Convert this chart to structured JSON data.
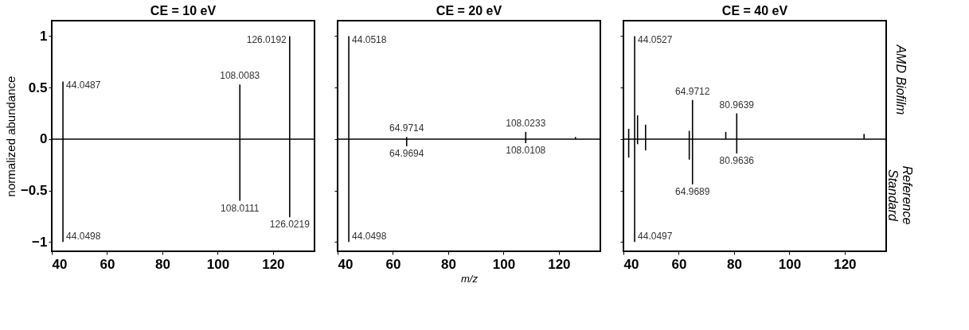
{
  "chart_data": [
    {
      "type": "bar",
      "title": "CE = 10 eV",
      "ylabel": "normalized abundance",
      "xlim": [
        40,
        135
      ],
      "xticks": [
        40,
        60,
        80,
        100,
        120
      ],
      "ylim": [
        -1.09,
        1.15
      ],
      "yticks": [
        -1,
        -0.5,
        0,
        0.5,
        1
      ],
      "grid": false,
      "ref_lines": [
        {
          "axis": "y",
          "value": 0,
          "color": "#000000"
        }
      ],
      "series": [
        {
          "color": "#000000",
          "x": [
            44.0487,
            108.0083,
            126.0192
          ],
          "values": [
            0.56,
            0.53,
            1.0
          ]
        },
        {
          "color": "#000000",
          "x": [
            44.0498,
            108.0111,
            126.0219
          ],
          "values": [
            -1.0,
            -0.6,
            -0.76
          ]
        }
      ],
      "annotations": [
        {
          "text": "44.0487",
          "x": 44.0487,
          "y": 0.56
        },
        {
          "text": "108.0083",
          "x": 108.0083,
          "y": 0.53
        },
        {
          "text": "126.0192",
          "x": 126.0192,
          "y": 1.0
        },
        {
          "text": "44.0498",
          "x": 44.0498,
          "y": -1.0
        },
        {
          "text": "108.0111",
          "x": 108.0111,
          "y": -0.6
        },
        {
          "text": "126.0219",
          "x": 126.0219,
          "y": -0.76
        }
      ]
    },
    {
      "type": "bar",
      "title": "CE = 20 eV",
      "xlabel": "m/z",
      "xlim": [
        40,
        135
      ],
      "xticks": [
        40,
        60,
        80,
        100,
        120
      ],
      "ylim": [
        -1.09,
        1.15
      ],
      "yticks": [
        -1,
        -0.5,
        0,
        0.5,
        1
      ],
      "grid": false,
      "tick_labels": "x",
      "ref_lines": [
        {
          "axis": "y",
          "value": 0,
          "color": "#000000"
        }
      ],
      "series": [
        {
          "color": "#000000",
          "x": [
            44.0518,
            64.9714,
            108.0233,
            126.0
          ],
          "values": [
            1.0,
            0.02,
            0.07,
            0.02
          ]
        },
        {
          "color": "#000000",
          "x": [
            44.0498,
            64.9694,
            108.0108
          ],
          "values": [
            -1.0,
            -0.07,
            -0.04
          ]
        }
      ],
      "annotations": [
        {
          "text": "44.0518",
          "x": 44.0518,
          "y": 1.0
        },
        {
          "text": "64.9714",
          "x": 64.9714,
          "y": 0.02
        },
        {
          "text": "108.0233",
          "x": 108.0233,
          "y": 0.07
        },
        {
          "text": "44.0498",
          "x": 44.0498,
          "y": -1.0
        },
        {
          "text": "64.9694",
          "x": 64.9694,
          "y": -0.07
        },
        {
          "text": "108.0108",
          "x": 108.0108,
          "y": -0.04
        }
      ]
    },
    {
      "type": "bar",
      "title": "CE = 40 eV",
      "xlim": [
        40,
        135
      ],
      "xticks": [
        40,
        60,
        80,
        100,
        120
      ],
      "ylim": [
        -1.09,
        1.15
      ],
      "yticks": [
        -1,
        -0.5,
        0,
        0.5,
        1
      ],
      "grid": false,
      "tick_labels": "x",
      "ref_lines": [
        {
          "axis": "y",
          "value": 0,
          "color": "#000000"
        }
      ],
      "series": [
        {
          "name": "AMD Biofilm",
          "color": "#000000",
          "x": [
            41.9,
            44.0527,
            45.1,
            48.0,
            63.8,
            64.9712,
            77.0,
            80.9639,
            127.0
          ],
          "values": [
            0.1,
            1.0,
            0.23,
            0.14,
            0.08,
            0.38,
            0.07,
            0.25,
            0.05
          ]
        },
        {
          "name": "Reference Standard",
          "color": "#000000",
          "x": [
            41.9,
            44.0497,
            45.1,
            48.0,
            63.8,
            64.9689,
            80.9636
          ],
          "values": [
            -0.18,
            -1.0,
            -0.05,
            -0.11,
            -0.2,
            -0.44,
            -0.14
          ]
        }
      ],
      "annotations": [
        {
          "text": "44.0527",
          "x": 44.0527,
          "y": 1.0
        },
        {
          "text": "64.9712",
          "x": 64.9712,
          "y": 0.38
        },
        {
          "text": "80.9639",
          "x": 80.9639,
          "y": 0.25
        },
        {
          "text": "44.0497",
          "x": 44.0497,
          "y": -1.0
        },
        {
          "text": "64.9689",
          "x": 64.9689,
          "y": -0.44
        },
        {
          "text": "80.9636",
          "x": 80.9636,
          "y": -0.14
        }
      ]
    }
  ]
}
